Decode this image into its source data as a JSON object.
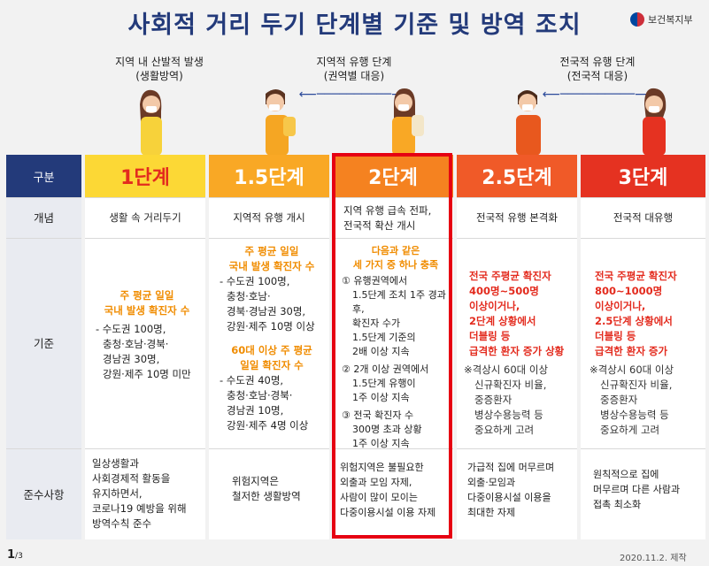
{
  "title": "사회적 거리 두기 단계별 기준 및 방역 조치",
  "ministry": "보건복지부",
  "phases": [
    {
      "line1": "지역 내 산발적 발생",
      "line2": "(생활방역)"
    },
    {
      "line1": "지역적 유행 단계",
      "line2": "(권역별 대응)"
    },
    {
      "line1": "전국적 유행 단계",
      "line2": "(전국적 대응)"
    }
  ],
  "row_labels": {
    "header": "구분",
    "concept": "개념",
    "criteria": "기준",
    "compliance": "준수사항"
  },
  "stages": [
    {
      "name": "1단계",
      "concept": "생활 속 거리두기",
      "criteria_title1": "주 평균 일일",
      "criteria_title2": "국내 발생 확진자 수",
      "criteria_lines": [
        "- 수도권 100명,",
        "충청·호남·경북·",
        "경남권 30명,",
        "강원·제주 10명 미만"
      ],
      "compliance": [
        "일상생활과",
        "사회경제적 활동을",
        "유지하면서,",
        "코로나19 예방을 위해",
        "방역수칙 준수"
      ]
    },
    {
      "name": "1.5단계",
      "concept": "지역적 유행 개시",
      "criteria_a_title1": "주 평균 일일",
      "criteria_a_title2": "국내 발생 확진자 수",
      "criteria_a_lines": [
        "- 수도권 100명,",
        "충청·호남·",
        "경북·경남권 30명,",
        "강원·제주 10명 이상"
      ],
      "criteria_b_title1": "60대 이상 주 평균",
      "criteria_b_title2": "일일 확진자 수",
      "criteria_b_lines": [
        "- 수도권 40명,",
        "충청·호남·경북·",
        "경남권 10명,",
        "강원·제주 4명 이상"
      ],
      "compliance": [
        "위험지역은",
        "철저한 생활방역"
      ]
    },
    {
      "name": "2단계",
      "concept1": "지역 유행 급속 전파,",
      "concept2": "전국적 확산 개시",
      "criteria_title1": "다음과 같은",
      "criteria_title2": "세 가지 중 하나 충족",
      "item1": [
        "① 유행권역에서",
        "1.5단계 조치 1주 경과 후,",
        "확진자 수가",
        "1.5단계 기준의",
        "2배 이상 지속"
      ],
      "item2": [
        "② 2개 이상 권역에서",
        "1.5단계 유행이",
        "1주 이상 지속"
      ],
      "item3": [
        "③ 전국 확진자 수",
        "300명 초과 상황",
        "1주 이상 지속"
      ],
      "compliance": [
        "위험지역은 불필요한",
        "외출과 모임 자제,",
        "사람이 많이 모이는",
        "다중이용시설 이용 자제"
      ]
    },
    {
      "name": "2.5단계",
      "concept": "전국적 유행 본격화",
      "criteria_red": [
        "전국 주평균 확진자",
        "400명~500명",
        "이상이거나,",
        "2단계 상황에서",
        "더블링 등",
        "급격한 환자 증가 상황"
      ],
      "criteria_note": [
        "※격상시 60대 이상",
        "신규확진자 비율,",
        "중증환자",
        "병상수용능력 등",
        "중요하게 고려"
      ],
      "compliance": [
        "가급적 집에 머무르며",
        "외출·모임과",
        "다중이용시설 이용을",
        "최대한 자제"
      ]
    },
    {
      "name": "3단계",
      "concept": "전국적 대유행",
      "criteria_red": [
        "전국 주평균 확진자",
        "800~1000명",
        "이상이거나,",
        "2.5단계 상황에서",
        "더블링 등",
        "급격한 환자 증가"
      ],
      "criteria_note": [
        "※격상시 60대 이상",
        "신규확진자 비율,",
        "중증환자",
        "병상수용능력 등",
        "중요하게 고려"
      ],
      "compliance": [
        "원칙적으로 집에",
        "머무르며 다른 사람과",
        "접촉 최소화"
      ]
    }
  ],
  "colors": {
    "navy": "#233a7a",
    "stage1": "#fcd835",
    "stage15": "#f9a825",
    "stage2": "#f58220",
    "stage25": "#f05a28",
    "stage3": "#e53221",
    "highlight": "#e60012"
  },
  "page": {
    "current": "1",
    "total": "/3"
  },
  "date": "2020.11.2. 제작"
}
